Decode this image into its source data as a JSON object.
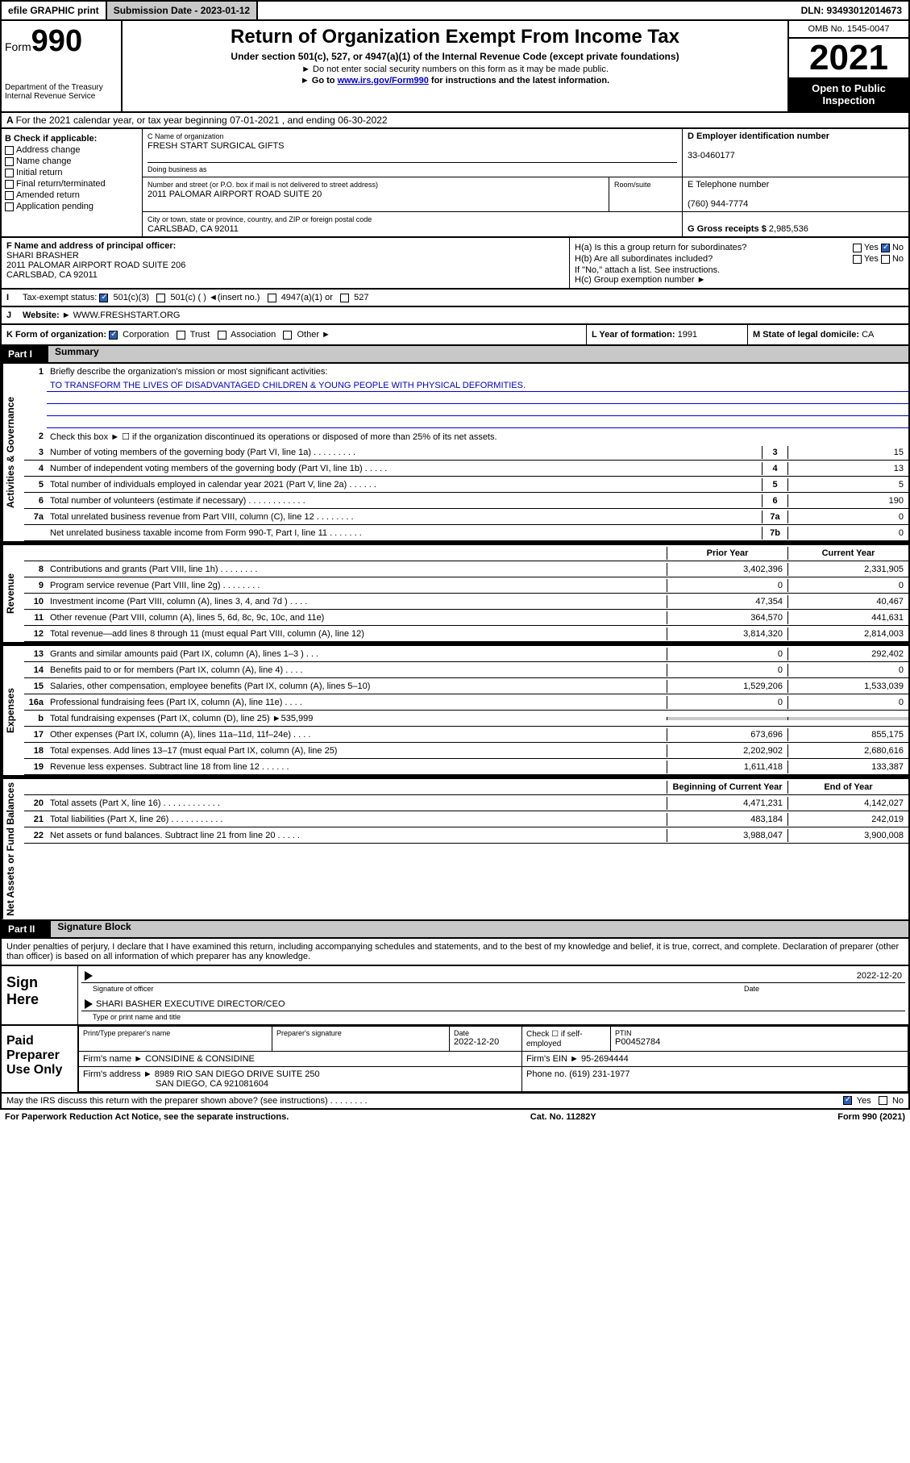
{
  "top_bar": {
    "efile": "efile GRAPHIC print",
    "sub_label": "Submission Date - 2023-01-12",
    "dln": "DLN: 93493012014673"
  },
  "header": {
    "form_label": "Form",
    "form_number": "990",
    "title": "Return of Organization Exempt From Income Tax",
    "subtitle": "Under section 501(c), 527, or 4947(a)(1) of the Internal Revenue Code (except private foundations)",
    "note1": "► Do not enter social security numbers on this form as it may be made public.",
    "note2_pre": "► Go to ",
    "note2_link": "www.irs.gov/Form990",
    "note2_post": " for instructions and the latest information.",
    "dept": "Department of the Treasury\nInternal Revenue Service",
    "omb": "OMB No. 1545-0047",
    "year": "2021",
    "inspection": "Open to Public Inspection"
  },
  "row_a": "For the 2021 calendar year, or tax year beginning 07-01-2021    , and ending 06-30-2022",
  "col_b": {
    "label": "B Check if applicable:",
    "items": [
      "Address change",
      "Name change",
      "Initial return",
      "Final return/terminated",
      "Amended return",
      "Application pending"
    ]
  },
  "col_c": {
    "name_label": "C Name of organization",
    "name": "FRESH START SURGICAL GIFTS",
    "dba_label": "Doing business as",
    "addr_label": "Number and street (or P.O. box if mail is not delivered to street address)",
    "room_label": "Room/suite",
    "addr": "2011 PALOMAR AIRPORT ROAD SUITE 20",
    "city_label": "City or town, state or province, country, and ZIP or foreign postal code",
    "city": "CARLSBAD, CA  92011"
  },
  "col_d": {
    "label": "D Employer identification number",
    "ein": "33-0460177",
    "e_label": "E Telephone number",
    "phone": "(760) 944-7774",
    "g_label": "G Gross receipts $",
    "g_amount": "2,985,536"
  },
  "section_f": {
    "label": "F  Name and address of principal officer:",
    "name": "SHARI BRASHER",
    "addr1": "2011 PALOMAR AIRPORT ROAD SUITE 206",
    "addr2": "CARLSBAD, CA  92011"
  },
  "section_h": {
    "ha_label": "H(a)  Is this a group return for subordinates?",
    "hb_label": "H(b)  Are all subordinates included?",
    "hb_note": "If \"No,\" attach a list. See instructions.",
    "hc_label": "H(c)  Group exemption number ►",
    "yes": "Yes",
    "no": "No"
  },
  "row_i": {
    "label": "Tax-exempt status:",
    "opts": [
      "501(c)(3)",
      "501(c) (   ) ◄(insert no.)",
      "4947(a)(1) or",
      "527"
    ]
  },
  "row_j": {
    "label": "Website: ►",
    "val": "WWW.FRESHSTART.ORG"
  },
  "row_k": {
    "label": "K Form of organization:",
    "opts": [
      "Corporation",
      "Trust",
      "Association",
      "Other ►"
    ],
    "l_label": "L Year of formation:",
    "l_val": "1991",
    "m_label": "M State of legal domicile:",
    "m_val": "CA"
  },
  "part1": {
    "num": "Part I",
    "title": "Summary"
  },
  "summary": {
    "sections": [
      {
        "label": "Activities & Governance",
        "rows": [
          {
            "n": "1",
            "txt": "Briefly describe the organization's mission or most significant activities:",
            "mission": "TO TRANSFORM THE LIVES OF DISADVANTAGED CHILDREN & YOUNG PEOPLE WITH PHYSICAL DEFORMITIES.",
            "type": "mission"
          },
          {
            "n": "2",
            "txt": "Check this box ► ☐  if the organization discontinued its operations or disposed of more than 25% of its net assets.",
            "type": "check"
          },
          {
            "n": "3",
            "txt": "Number of voting members of the governing body (Part VI, line 1a)  .    .    .    .    .    .    .    .    .",
            "box": "3",
            "v": "15"
          },
          {
            "n": "4",
            "txt": "Number of independent voting members of the governing body (Part VI, line 1b)  .    .    .    .    .",
            "box": "4",
            "v": "13"
          },
          {
            "n": "5",
            "txt": "Total number of individuals employed in calendar year 2021 (Part V, line 2a)  .    .    .    .    .    .",
            "box": "5",
            "v": "5"
          },
          {
            "n": "6",
            "txt": "Total number of volunteers (estimate if necessary)  .    .    .    .    .    .    .    .    .    .    .    .",
            "box": "6",
            "v": "190"
          },
          {
            "n": "7a",
            "txt": "Total unrelated business revenue from Part VIII, column (C), line 12   .    .    .    .    .    .    .    .",
            "box": "7a",
            "v": "0"
          },
          {
            "n": "",
            "txt": "Net unrelated business taxable income from Form 990-T, Part I, line 11  .    .    .    .    .    .    .",
            "box": "7b",
            "v": "0"
          }
        ]
      },
      {
        "label": "Revenue",
        "header": {
          "c1": "Prior Year",
          "c2": "Current Year"
        },
        "rows": [
          {
            "n": "8",
            "txt": "Contributions and grants (Part VIII, line 1h)  .    .    .    .    .    .    .    .",
            "p": "3,402,396",
            "c": "2,331,905"
          },
          {
            "n": "9",
            "txt": "Program service revenue (Part VIII, line 2g)  .    .    .    .    .    .    .    .",
            "p": "0",
            "c": "0"
          },
          {
            "n": "10",
            "txt": "Investment income (Part VIII, column (A), lines 3, 4, and 7d )   .    .    .    .",
            "p": "47,354",
            "c": "40,467"
          },
          {
            "n": "11",
            "txt": "Other revenue (Part VIII, column (A), lines 5, 6d, 8c, 9c, 10c, and 11e)",
            "p": "364,570",
            "c": "441,631"
          },
          {
            "n": "12",
            "txt": "Total revenue—add lines 8 through 11 (must equal Part VIII, column (A), line 12)",
            "p": "3,814,320",
            "c": "2,814,003"
          }
        ]
      },
      {
        "label": "Expenses",
        "rows": [
          {
            "n": "13",
            "txt": "Grants and similar amounts paid (Part IX, column (A), lines 1–3 )   .    .    .",
            "p": "0",
            "c": "292,402"
          },
          {
            "n": "14",
            "txt": "Benefits paid to or for members (Part IX, column (A), line 4)   .    .    .    .",
            "p": "0",
            "c": "0"
          },
          {
            "n": "15",
            "txt": "Salaries, other compensation, employee benefits (Part IX, column (A), lines 5–10)",
            "p": "1,529,206",
            "c": "1,533,039"
          },
          {
            "n": "16a",
            "txt": "Professional fundraising fees (Part IX, column (A), line 11e)   .    .    .    .",
            "p": "0",
            "c": "0"
          },
          {
            "n": "b",
            "txt": "Total fundraising expenses (Part IX, column (D), line 25) ►535,999",
            "shade": true
          },
          {
            "n": "17",
            "txt": "Other expenses (Part IX, column (A), lines 11a–11d, 11f–24e)  .    .    .    .",
            "p": "673,696",
            "c": "855,175"
          },
          {
            "n": "18",
            "txt": "Total expenses. Add lines 13–17 (must equal Part IX, column (A), line 25)",
            "p": "2,202,902",
            "c": "2,680,616"
          },
          {
            "n": "19",
            "txt": "Revenue less expenses. Subtract line 18 from line 12  .    .    .    .    .    .",
            "p": "1,611,418",
            "c": "133,387"
          }
        ]
      },
      {
        "label": "Net Assets or Fund Balances",
        "header": {
          "c1": "Beginning of Current Year",
          "c2": "End of Year"
        },
        "rows": [
          {
            "n": "20",
            "txt": "Total assets (Part X, line 16)  .    .    .    .    .    .    .    .    .    .    .    .",
            "p": "4,471,231",
            "c": "4,142,027"
          },
          {
            "n": "21",
            "txt": "Total liabilities (Part X, line 26)  .    .    .    .    .    .    .    .    .    .    .",
            "p": "483,184",
            "c": "242,019"
          },
          {
            "n": "22",
            "txt": "Net assets or fund balances. Subtract line 21 from line 20  .    .    .    .    .",
            "p": "3,988,047",
            "c": "3,900,008"
          }
        ]
      }
    ]
  },
  "part2": {
    "num": "Part II",
    "title": "Signature Block"
  },
  "sig_declare": "Under penalties of perjury, I declare that I have examined this return, including accompanying schedules and statements, and to the best of my knowledge and belief, it is true, correct, and complete. Declaration of preparer (other than officer) is based on all information of which preparer has any knowledge.",
  "sign_here": {
    "label": "Sign Here",
    "date": "2022-12-20",
    "sig_of": "Signature of officer",
    "date_lbl": "Date",
    "name": "SHARI BASHER  EXECUTIVE DIRECTOR/CEO",
    "type_lbl": "Type or print name and title"
  },
  "preparer": {
    "label": "Paid Preparer Use Only",
    "print_lbl": "Print/Type preparer's name",
    "sig_lbl": "Preparer's signature",
    "date_lbl": "Date",
    "date": "2022-12-20",
    "check_lbl": "Check ☐ if self-employed",
    "ptin_lbl": "PTIN",
    "ptin": "P00452784",
    "firm_name_lbl": "Firm's name    ►",
    "firm_name": "CONSIDINE & CONSIDINE",
    "firm_ein_lbl": "Firm's EIN ►",
    "firm_ein": "95-2694444",
    "firm_addr_lbl": "Firm's address ►",
    "firm_addr1": "8989 RIO SAN DIEGO DRIVE SUITE 250",
    "firm_addr2": "SAN DIEGO, CA  921081604",
    "phone_lbl": "Phone no.",
    "phone": "(619) 231-1977"
  },
  "discuss": {
    "txt": "May the IRS discuss this return with the preparer shown above? (see instructions)   .    .    .    .    .    .    .    .",
    "yes": "Yes",
    "no": "No"
  },
  "footer": {
    "left": "For Paperwork Reduction Act Notice, see the separate instructions.",
    "mid": "Cat. No. 11282Y",
    "right": "Form 990 (2021)"
  }
}
